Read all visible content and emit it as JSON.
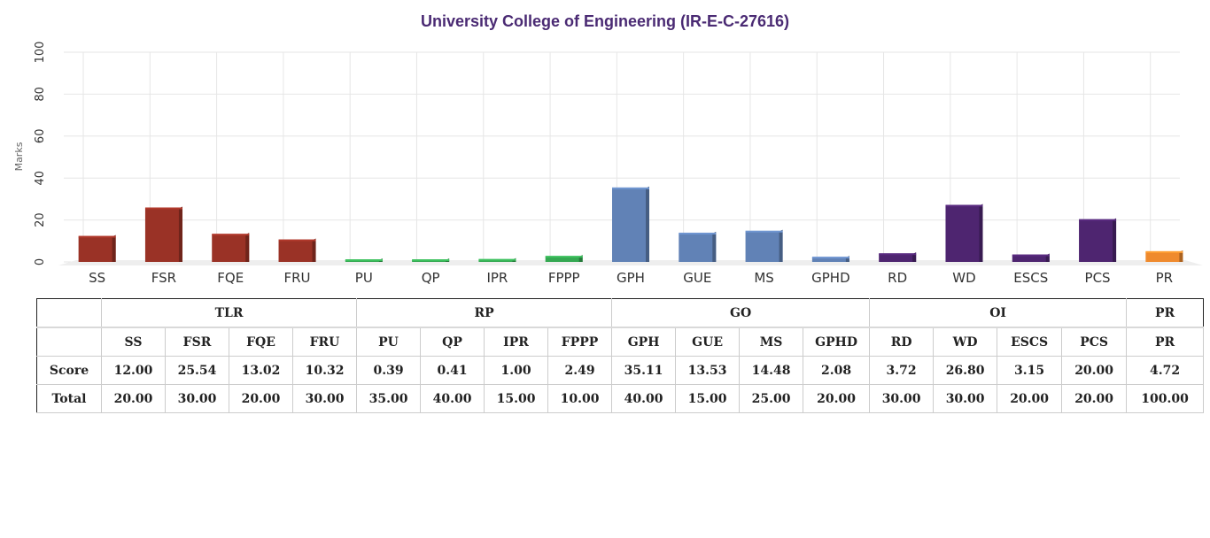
{
  "chart_data": {
    "type": "bar",
    "title": "University College of Engineering (IR-E-C-27616)",
    "ylabel": "Marks",
    "xlabel": "",
    "ylim": [
      0,
      100
    ],
    "yticks": [
      0,
      20,
      40,
      60,
      80,
      100
    ],
    "grid": true,
    "categories": [
      "SS",
      "FSR",
      "FQE",
      "FRU",
      "PU",
      "QP",
      "IPR",
      "FPPP",
      "GPH",
      "GUE",
      "MS",
      "GPHD",
      "RD",
      "WD",
      "ESCS",
      "PCS",
      "PR"
    ],
    "values": [
      12.0,
      25.54,
      13.02,
      10.32,
      0.39,
      0.41,
      1.0,
      2.49,
      35.11,
      13.53,
      14.48,
      2.08,
      3.72,
      26.8,
      3.15,
      20.0,
      4.72
    ],
    "groups": [
      {
        "name": "TLR",
        "color": "#9a3226",
        "categories": [
          "SS",
          "FSR",
          "FQE",
          "FRU"
        ]
      },
      {
        "name": "RP",
        "color": "#35a852",
        "categories": [
          "PU",
          "QP",
          "IPR",
          "FPPP"
        ]
      },
      {
        "name": "GO",
        "color": "#6182b6",
        "categories": [
          "GPH",
          "GUE",
          "MS",
          "GPHD"
        ]
      },
      {
        "name": "OI",
        "color": "#4e2570",
        "categories": [
          "RD",
          "WD",
          "ESCS",
          "PCS"
        ]
      },
      {
        "name": "PR",
        "color": "#ef8a2d",
        "categories": [
          "PR"
        ]
      }
    ]
  },
  "table": {
    "groups": [
      "TLR",
      "RP",
      "GO",
      "OI",
      "PR"
    ],
    "columns": [
      "SS",
      "FSR",
      "FQE",
      "FRU",
      "PU",
      "QP",
      "IPR",
      "FPPP",
      "GPH",
      "GUE",
      "MS",
      "GPHD",
      "RD",
      "WD",
      "ESCS",
      "PCS",
      "PR"
    ],
    "score_label": "Score",
    "total_label": "Total",
    "score": [
      "12.00",
      "25.54",
      "13.02",
      "10.32",
      "0.39",
      "0.41",
      "1.00",
      "2.49",
      "35.11",
      "13.53",
      "14.48",
      "2.08",
      "3.72",
      "26.80",
      "3.15",
      "20.00",
      "4.72"
    ],
    "total": [
      "20.00",
      "30.00",
      "20.00",
      "30.00",
      "35.00",
      "40.00",
      "15.00",
      "10.00",
      "40.00",
      "15.00",
      "25.00",
      "20.00",
      "30.00",
      "30.00",
      "20.00",
      "20.00",
      "100.00"
    ]
  }
}
